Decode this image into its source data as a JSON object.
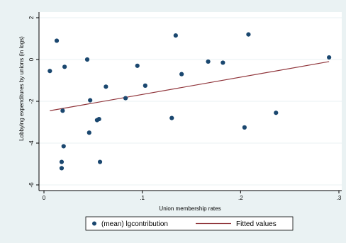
{
  "chart_data": {
    "type": "scatter",
    "xlabel": "Union membership rates",
    "ylabel": "Lobbying expenditures by unions (in logs)",
    "xlim": [
      0,
      0.3
    ],
    "ylim": [
      -6,
      2
    ],
    "xticks": [
      0,
      0.1,
      0.2,
      0.3
    ],
    "xtick_labels": [
      "0",
      ".1",
      ".2",
      ".3"
    ],
    "yticks": [
      -6,
      -4,
      -2,
      0,
      2
    ],
    "ytick_labels": [
      "-6",
      "-4",
      "-2",
      "0",
      "2"
    ],
    "grid": "horizontal",
    "legend": "bottom",
    "series": [
      {
        "name": "(mean) lgcontribution",
        "kind": "scatter",
        "color": "#1a476f",
        "x": [
          0.006,
          0.013,
          0.018,
          0.018,
          0.019,
          0.02,
          0.021,
          0.044,
          0.046,
          0.047,
          0.054,
          0.056,
          0.057,
          0.063,
          0.083,
          0.095,
          0.103,
          0.13,
          0.134,
          0.14,
          0.167,
          0.182,
          0.204,
          0.208,
          0.236,
          0.29
        ],
        "y": [
          -0.55,
          0.9,
          -4.9,
          -5.2,
          -2.45,
          -4.15,
          -0.35,
          0.0,
          -3.5,
          -1.95,
          -2.9,
          -2.85,
          -4.9,
          -1.3,
          -1.85,
          -0.3,
          -1.25,
          -2.8,
          1.15,
          -0.7,
          -0.1,
          -0.15,
          -3.25,
          1.2,
          -2.55,
          0.1
        ]
      },
      {
        "name": "Fitted values",
        "kind": "line",
        "color": "#90353b",
        "x": [
          0.006,
          0.29
        ],
        "y": [
          -2.45,
          -0.1
        ]
      }
    ]
  }
}
